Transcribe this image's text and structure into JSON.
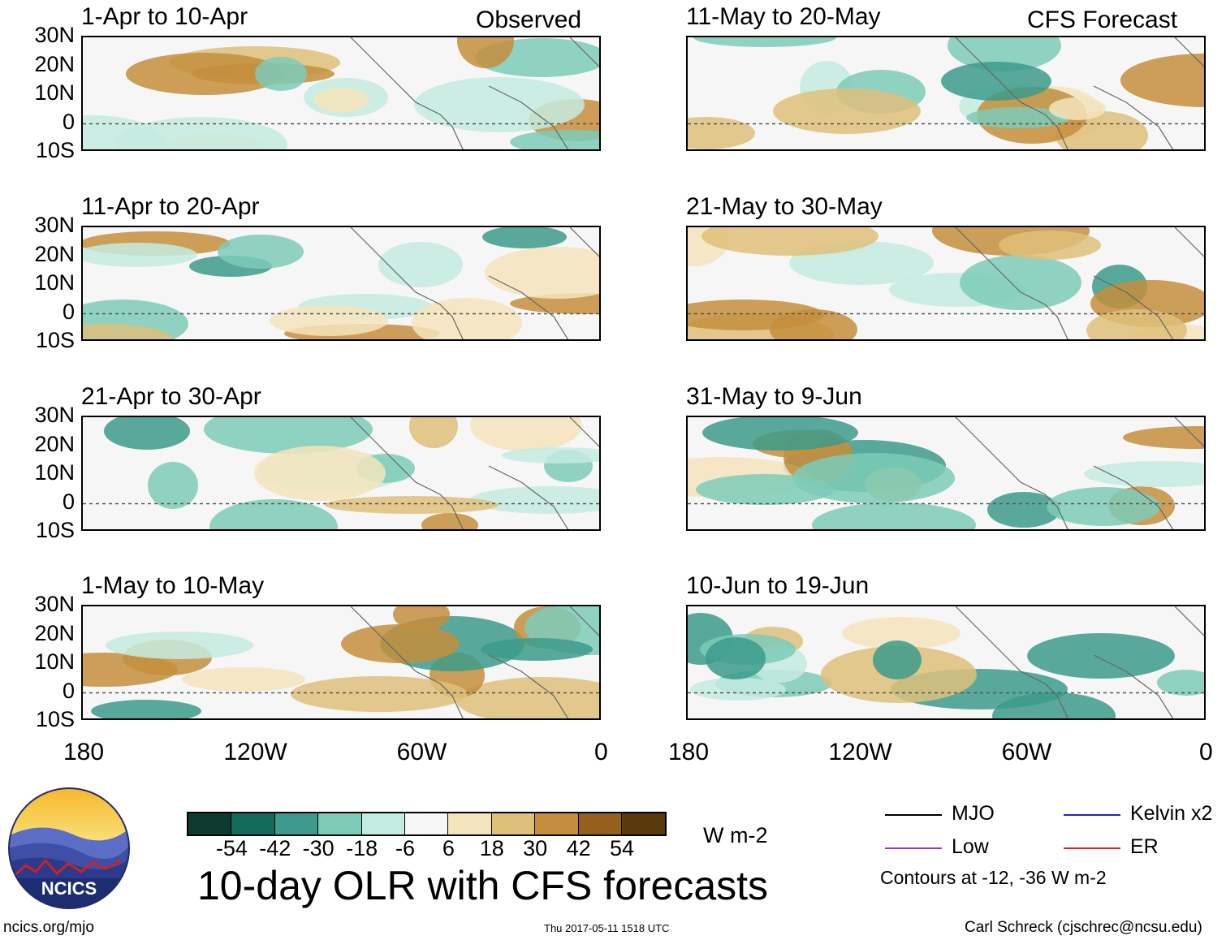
{
  "left_column_label": "Observed",
  "right_column_label": "CFS Forecast",
  "panels_left": [
    {
      "title": "1-Apr to 10-Apr"
    },
    {
      "title": "11-Apr to 20-Apr"
    },
    {
      "title": "21-Apr to 30-Apr"
    },
    {
      "title": "1-May to 10-May"
    }
  ],
  "panels_right": [
    {
      "title": "11-May to 20-May"
    },
    {
      "title": "21-May to 30-May"
    },
    {
      "title": "31-May to 9-Jun"
    },
    {
      "title": "10-Jun to 19-Jun"
    }
  ],
  "lat_labels": [
    "30N",
    "20N",
    "10N",
    "0",
    "10S"
  ],
  "lon_labels": [
    "180",
    "120W",
    "60W",
    "0"
  ],
  "colorbar": {
    "colors": [
      "#0c3b2f",
      "#146b5c",
      "#3c9b8c",
      "#7ccbb8",
      "#c4ebe0",
      "#f6f6f6",
      "#f4e4bc",
      "#dfc07a",
      "#c48e3c",
      "#94601c",
      "#5a3a0c"
    ],
    "ticks": [
      "-54",
      "-42",
      "-30",
      "-18",
      "-6",
      "6",
      "18",
      "30",
      "42",
      "54"
    ],
    "units": "W m-2"
  },
  "title": "10-day OLR with CFS forecasts",
  "legend": {
    "items": [
      {
        "label": "MJO",
        "color": "#000000"
      },
      {
        "label": "Kelvin x2",
        "color": "#2222cc"
      },
      {
        "label": "Low",
        "color": "#9933dd"
      },
      {
        "label": "ER",
        "color": "#dd2222"
      }
    ],
    "note": "Contours at -12, -36 W m-2"
  },
  "logo_text": "NCICS",
  "footer": {
    "left": "ncics.org/mjo",
    "center": "Thu 2017-05-11 1518 UTC",
    "right": "Carl Schreck (cjschrec@ncsu.edu)"
  }
}
